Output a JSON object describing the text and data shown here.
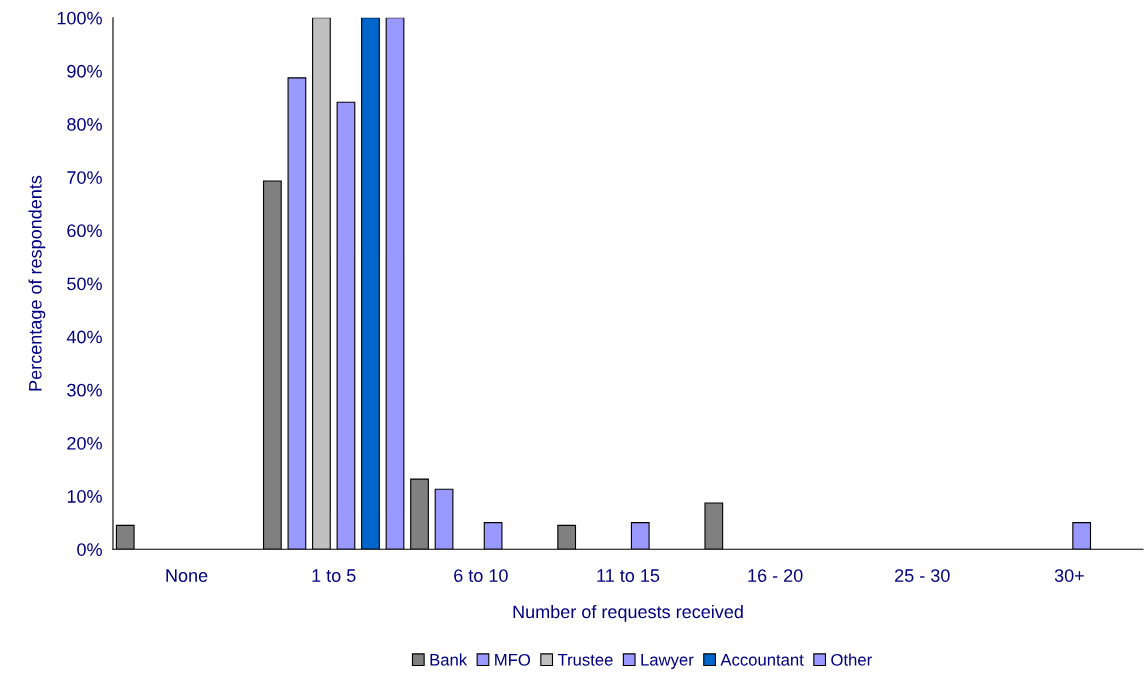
{
  "chart_data": {
    "type": "bar",
    "xlabel": "Number of requests received",
    "ylabel": "Percentage of respondents",
    "categories": [
      "None",
      "1 to 5",
      "6 to 10",
      "11 to 15",
      "16 - 20",
      "25 - 30",
      "30+"
    ],
    "series": [
      {
        "name": "Bank",
        "color": "#808080",
        "values": [
          4.5,
          69.3,
          13.2,
          4.5,
          8.7,
          null,
          null
        ]
      },
      {
        "name": "MFO",
        "color": "#9999ff",
        "values": [
          null,
          88.7,
          11.3,
          null,
          null,
          null,
          null
        ]
      },
      {
        "name": "Trustee",
        "color": "#c0c0c0",
        "values": [
          null,
          100,
          null,
          null,
          null,
          null,
          null
        ]
      },
      {
        "name": "Lawyer",
        "color": "#9999ff",
        "values": [
          null,
          84.1,
          5.0,
          5.0,
          null,
          null,
          5.0
        ]
      },
      {
        "name": "Accountant",
        "color": "#0066cc",
        "values": [
          null,
          100,
          null,
          null,
          null,
          null,
          null
        ]
      },
      {
        "name": "Other",
        "color": "#9999ff",
        "values": [
          null,
          100,
          null,
          null,
          null,
          null,
          null
        ]
      }
    ],
    "ylim": [
      0,
      100
    ],
    "yticks": [
      {
        "value": 0,
        "label": "0%"
      },
      {
        "value": 10,
        "label": "10%"
      },
      {
        "value": 20,
        "label": "20%"
      },
      {
        "value": 30,
        "label": "30%"
      },
      {
        "value": 40,
        "label": "40%"
      },
      {
        "value": 50,
        "label": "50%"
      },
      {
        "value": 60,
        "label": "60%"
      },
      {
        "value": 70,
        "label": "70%"
      },
      {
        "value": 80,
        "label": "80%"
      },
      {
        "value": 90,
        "label": "90%"
      },
      {
        "value": 100,
        "label": "100%"
      }
    ],
    "grid": false,
    "legend": "bottom"
  }
}
